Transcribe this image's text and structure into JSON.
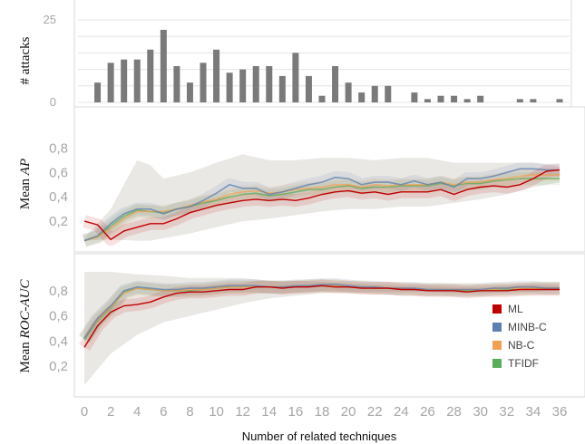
{
  "xlabel": "Number of related techniques",
  "x_ticks": [
    "0",
    "2",
    "4",
    "6",
    "8",
    "10",
    "12",
    "14",
    "16",
    "18",
    "20",
    "22",
    "24",
    "26",
    "28",
    "30",
    "32",
    "34",
    "36"
  ],
  "colors": {
    "ML": "#c00000",
    "MINB-C": "#5b7fb0",
    "NB-C": "#f0a050",
    "TFIDF": "#5aae5a",
    "bars": "#7a7a7a"
  },
  "chart_data": [
    {
      "type": "bar",
      "ylabel": "# attacks",
      "y_ticks": [
        "25",
        "0"
      ],
      "ylim": [
        0,
        25
      ],
      "x": [
        1,
        2,
        3,
        4,
        5,
        6,
        7,
        8,
        9,
        10,
        11,
        12,
        13,
        14,
        15,
        16,
        17,
        18,
        19,
        20,
        21,
        22,
        23,
        24,
        25,
        26,
        27,
        28,
        29,
        30,
        31,
        32,
        33,
        34,
        35,
        36
      ],
      "values": [
        6,
        12,
        13,
        13,
        16,
        22,
        11,
        6,
        12,
        16,
        9,
        10,
        11,
        11,
        8,
        15,
        8,
        2,
        11,
        6,
        3,
        5,
        5,
        0,
        3,
        1,
        2,
        2,
        1,
        2,
        0,
        0,
        1,
        1,
        0,
        1
      ]
    },
    {
      "type": "line",
      "ylabel_prefix": "Mean ",
      "ylabel_em": "AP",
      "y_ticks": [
        "0,8",
        "0,6",
        "0,4",
        "0,2"
      ],
      "ylim": [
        0,
        0.9
      ],
      "x": [
        0,
        1,
        2,
        3,
        4,
        5,
        6,
        7,
        8,
        9,
        10,
        11,
        12,
        13,
        14,
        15,
        16,
        17,
        18,
        19,
        20,
        21,
        22,
        23,
        24,
        25,
        26,
        27,
        28,
        29,
        30,
        31,
        32,
        33,
        34,
        35,
        36
      ],
      "series": [
        {
          "name": "ML",
          "values": [
            0.2,
            0.17,
            0.05,
            0.12,
            0.15,
            0.18,
            0.18,
            0.22,
            0.27,
            0.3,
            0.33,
            0.35,
            0.37,
            0.38,
            0.37,
            0.38,
            0.37,
            0.39,
            0.42,
            0.44,
            0.45,
            0.43,
            0.44,
            0.42,
            0.44,
            0.44,
            0.44,
            0.46,
            0.42,
            0.46,
            0.48,
            0.49,
            0.48,
            0.5,
            0.55,
            0.61,
            0.62
          ]
        },
        {
          "name": "MINB-C",
          "values": [
            0.04,
            0.08,
            0.18,
            0.26,
            0.3,
            0.3,
            0.26,
            0.3,
            0.32,
            0.37,
            0.43,
            0.5,
            0.47,
            0.47,
            0.42,
            0.44,
            0.47,
            0.5,
            0.52,
            0.56,
            0.55,
            0.5,
            0.52,
            0.52,
            0.5,
            0.53,
            0.5,
            0.52,
            0.48,
            0.55,
            0.55,
            0.57,
            0.6,
            0.63,
            0.63,
            0.62,
            0.62
          ]
        },
        {
          "name": "NB-C",
          "values": [
            0.04,
            0.07,
            0.14,
            0.22,
            0.28,
            0.28,
            0.28,
            0.3,
            0.33,
            0.36,
            0.38,
            0.42,
            0.44,
            0.45,
            0.43,
            0.44,
            0.46,
            0.47,
            0.48,
            0.5,
            0.5,
            0.48,
            0.5,
            0.49,
            0.5,
            0.5,
            0.5,
            0.52,
            0.5,
            0.52,
            0.52,
            0.54,
            0.55,
            0.57,
            0.58,
            0.58,
            0.58
          ]
        },
        {
          "name": "TFIDF",
          "values": [
            0.04,
            0.07,
            0.16,
            0.24,
            0.29,
            0.28,
            0.27,
            0.3,
            0.32,
            0.35,
            0.37,
            0.4,
            0.42,
            0.43,
            0.41,
            0.42,
            0.44,
            0.46,
            0.46,
            0.48,
            0.49,
            0.47,
            0.48,
            0.48,
            0.49,
            0.49,
            0.49,
            0.51,
            0.49,
            0.51,
            0.51,
            0.53,
            0.54,
            0.55,
            0.55,
            0.55,
            0.55
          ]
        }
      ],
      "band": {
        "x": [
          0,
          2,
          4,
          5,
          6,
          8,
          10,
          12,
          14,
          16,
          18,
          20,
          22,
          24,
          26,
          28,
          30,
          32,
          34,
          36
        ],
        "upper": [
          0.06,
          0.3,
          0.7,
          0.66,
          0.55,
          0.6,
          0.68,
          0.75,
          0.7,
          0.7,
          0.72,
          0.72,
          0.7,
          0.72,
          0.72,
          0.68,
          0.68,
          0.68,
          0.68,
          0.65
        ],
        "lower": [
          0.04,
          0.05,
          0.04,
          0.04,
          0.06,
          0.1,
          0.15,
          0.2,
          0.22,
          0.25,
          0.28,
          0.3,
          0.3,
          0.32,
          0.32,
          0.35,
          0.38,
          0.42,
          0.48,
          0.52
        ]
      }
    },
    {
      "type": "line",
      "ylabel_prefix": "Mean ",
      "ylabel_em": "ROC-AUC",
      "y_ticks": [
        "0,8",
        "0,6",
        "0,4",
        "0,2"
      ],
      "ylim": [
        0,
        0.95
      ],
      "x": [
        0,
        1,
        2,
        3,
        4,
        5,
        6,
        7,
        8,
        9,
        10,
        11,
        12,
        13,
        14,
        15,
        16,
        17,
        18,
        19,
        20,
        21,
        22,
        23,
        24,
        25,
        26,
        27,
        28,
        29,
        30,
        31,
        32,
        33,
        34,
        35,
        36
      ],
      "series": [
        {
          "name": "ML",
          "values": [
            0.35,
            0.52,
            0.63,
            0.68,
            0.69,
            0.71,
            0.75,
            0.78,
            0.79,
            0.79,
            0.8,
            0.81,
            0.81,
            0.83,
            0.83,
            0.82,
            0.83,
            0.83,
            0.84,
            0.83,
            0.83,
            0.82,
            0.82,
            0.82,
            0.81,
            0.81,
            0.8,
            0.8,
            0.8,
            0.79,
            0.8,
            0.8,
            0.8,
            0.81,
            0.81,
            0.81,
            0.81
          ]
        },
        {
          "name": "MINB-C",
          "values": [
            0.42,
            0.58,
            0.68,
            0.8,
            0.83,
            0.82,
            0.81,
            0.81,
            0.82,
            0.82,
            0.83,
            0.84,
            0.84,
            0.84,
            0.83,
            0.83,
            0.84,
            0.84,
            0.85,
            0.85,
            0.84,
            0.83,
            0.83,
            0.82,
            0.82,
            0.82,
            0.81,
            0.81,
            0.81,
            0.81,
            0.81,
            0.82,
            0.82,
            0.83,
            0.83,
            0.82,
            0.82
          ]
        },
        {
          "name": "NB-C",
          "values": [
            0.42,
            0.57,
            0.67,
            0.78,
            0.82,
            0.81,
            0.8,
            0.8,
            0.81,
            0.81,
            0.82,
            0.83,
            0.83,
            0.83,
            0.83,
            0.83,
            0.83,
            0.84,
            0.84,
            0.84,
            0.83,
            0.83,
            0.82,
            0.82,
            0.82,
            0.81,
            0.81,
            0.81,
            0.81,
            0.81,
            0.81,
            0.81,
            0.82,
            0.82,
            0.82,
            0.82,
            0.82
          ]
        },
        {
          "name": "TFIDF",
          "values": [
            0.41,
            0.56,
            0.66,
            0.79,
            0.82,
            0.81,
            0.8,
            0.8,
            0.8,
            0.81,
            0.82,
            0.83,
            0.83,
            0.83,
            0.83,
            0.83,
            0.83,
            0.84,
            0.84,
            0.84,
            0.83,
            0.83,
            0.82,
            0.82,
            0.81,
            0.81,
            0.81,
            0.81,
            0.8,
            0.8,
            0.8,
            0.81,
            0.81,
            0.81,
            0.82,
            0.82,
            0.82
          ]
        }
      ],
      "band": {
        "x": [
          0,
          2,
          4,
          6,
          8,
          10,
          12,
          14,
          16,
          18,
          20,
          22,
          24,
          26,
          28,
          30,
          32,
          34,
          36
        ],
        "upper": [
          0.95,
          0.95,
          0.93,
          0.92,
          0.9,
          0.9,
          0.9,
          0.88,
          0.88,
          0.87,
          0.86,
          0.85,
          0.84,
          0.84,
          0.83,
          0.83,
          0.84,
          0.85,
          0.84
        ],
        "lower": [
          0.05,
          0.3,
          0.45,
          0.55,
          0.6,
          0.65,
          0.7,
          0.74,
          0.76,
          0.78,
          0.79,
          0.79,
          0.79,
          0.79,
          0.78,
          0.78,
          0.79,
          0.79,
          0.8
        ]
      }
    }
  ]
}
